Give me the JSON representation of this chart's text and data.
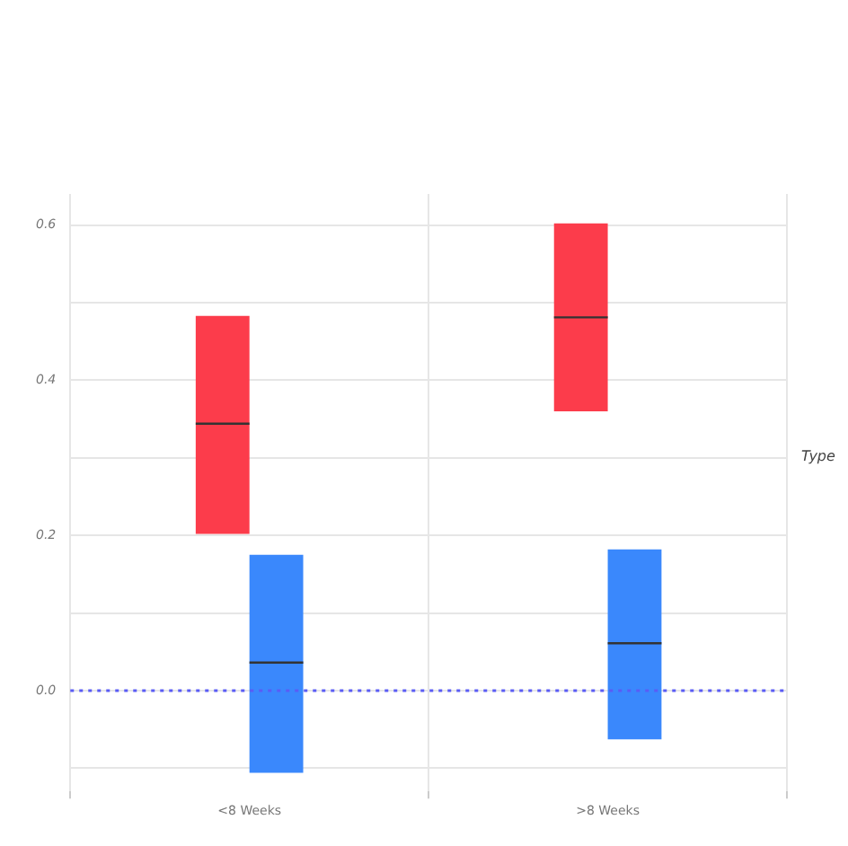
{
  "chart_data": {
    "type": "box",
    "categories": [
      "<8 Weeks",
      ">8 Weeks"
    ],
    "series": [
      {
        "color": "#fc3c4b",
        "boxes": [
          {
            "low": 0.202,
            "q1": 0.202,
            "median": 0.344,
            "q3": 0.483,
            "high": 0.483
          },
          {
            "low": 0.36,
            "q1": 0.36,
            "median": 0.481,
            "q3": 0.602,
            "high": 0.602
          }
        ]
      },
      {
        "color": "#3a88fc",
        "boxes": [
          {
            "low": -0.106,
            "q1": -0.106,
            "median": 0.036,
            "q3": 0.175,
            "high": 0.175
          },
          {
            "low": -0.063,
            "q1": -0.063,
            "median": 0.061,
            "q3": 0.182,
            "high": 0.182
          }
        ]
      }
    ],
    "ylim": [
      -0.13,
      0.64
    ],
    "yticks": [
      {
        "value": -0.1,
        "label": null
      },
      {
        "value": 0,
        "label": "0.0"
      },
      {
        "value": 0.1,
        "label": null
      },
      {
        "value": 0.2,
        "label": "0.2"
      },
      {
        "value": 0.3,
        "label": null
      },
      {
        "value": 0.4,
        "label": "0.4"
      },
      {
        "value": 0.5,
        "label": null
      },
      {
        "value": 0.6,
        "label": "0.6"
      }
    ],
    "ref_lines": [
      {
        "axis": "y",
        "value": 0,
        "color": "#5a5cf5",
        "line_style": "dotted"
      }
    ],
    "legend_title": "Type",
    "grid": true
  }
}
